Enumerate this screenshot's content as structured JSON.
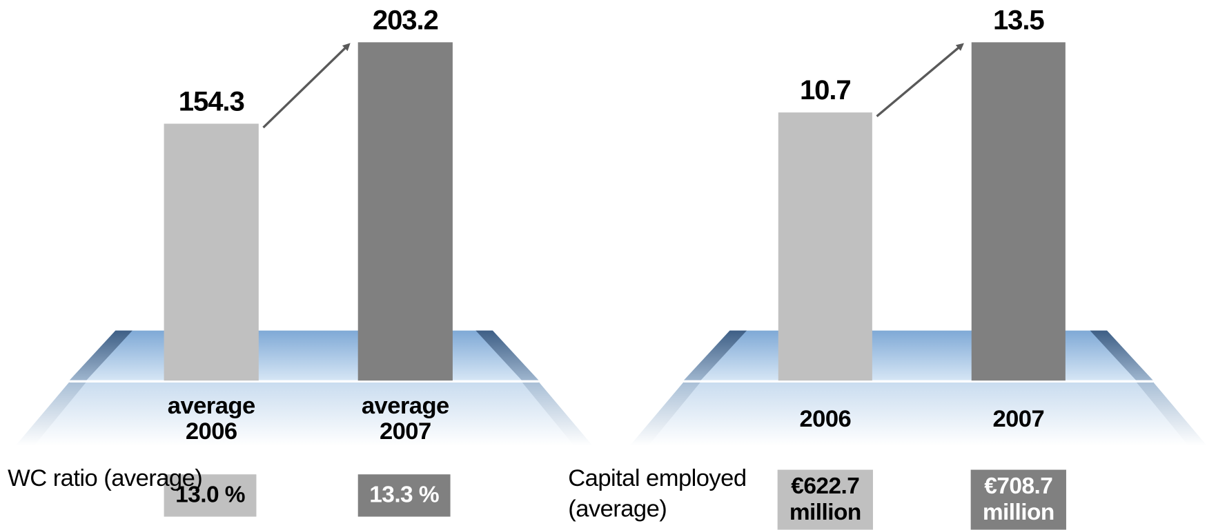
{
  "chart_data": [
    {
      "type": "bar",
      "categories": [
        "average 2006",
        "average 2007"
      ],
      "values": [
        154.3,
        203.2
      ],
      "colors": [
        "#c0c0c0",
        "#808080"
      ],
      "metric_label": "WC ratio (average)",
      "metric_values": [
        "13.0 %",
        "13.3 %"
      ]
    },
    {
      "type": "bar",
      "categories": [
        "2006",
        "2007"
      ],
      "values": [
        10.7,
        13.5
      ],
      "colors": [
        "#c0c0c0",
        "#808080"
      ],
      "metric_label": "Capital employed (average)",
      "metric_values": [
        "€622.7 million",
        "€708.7 million"
      ]
    }
  ]
}
